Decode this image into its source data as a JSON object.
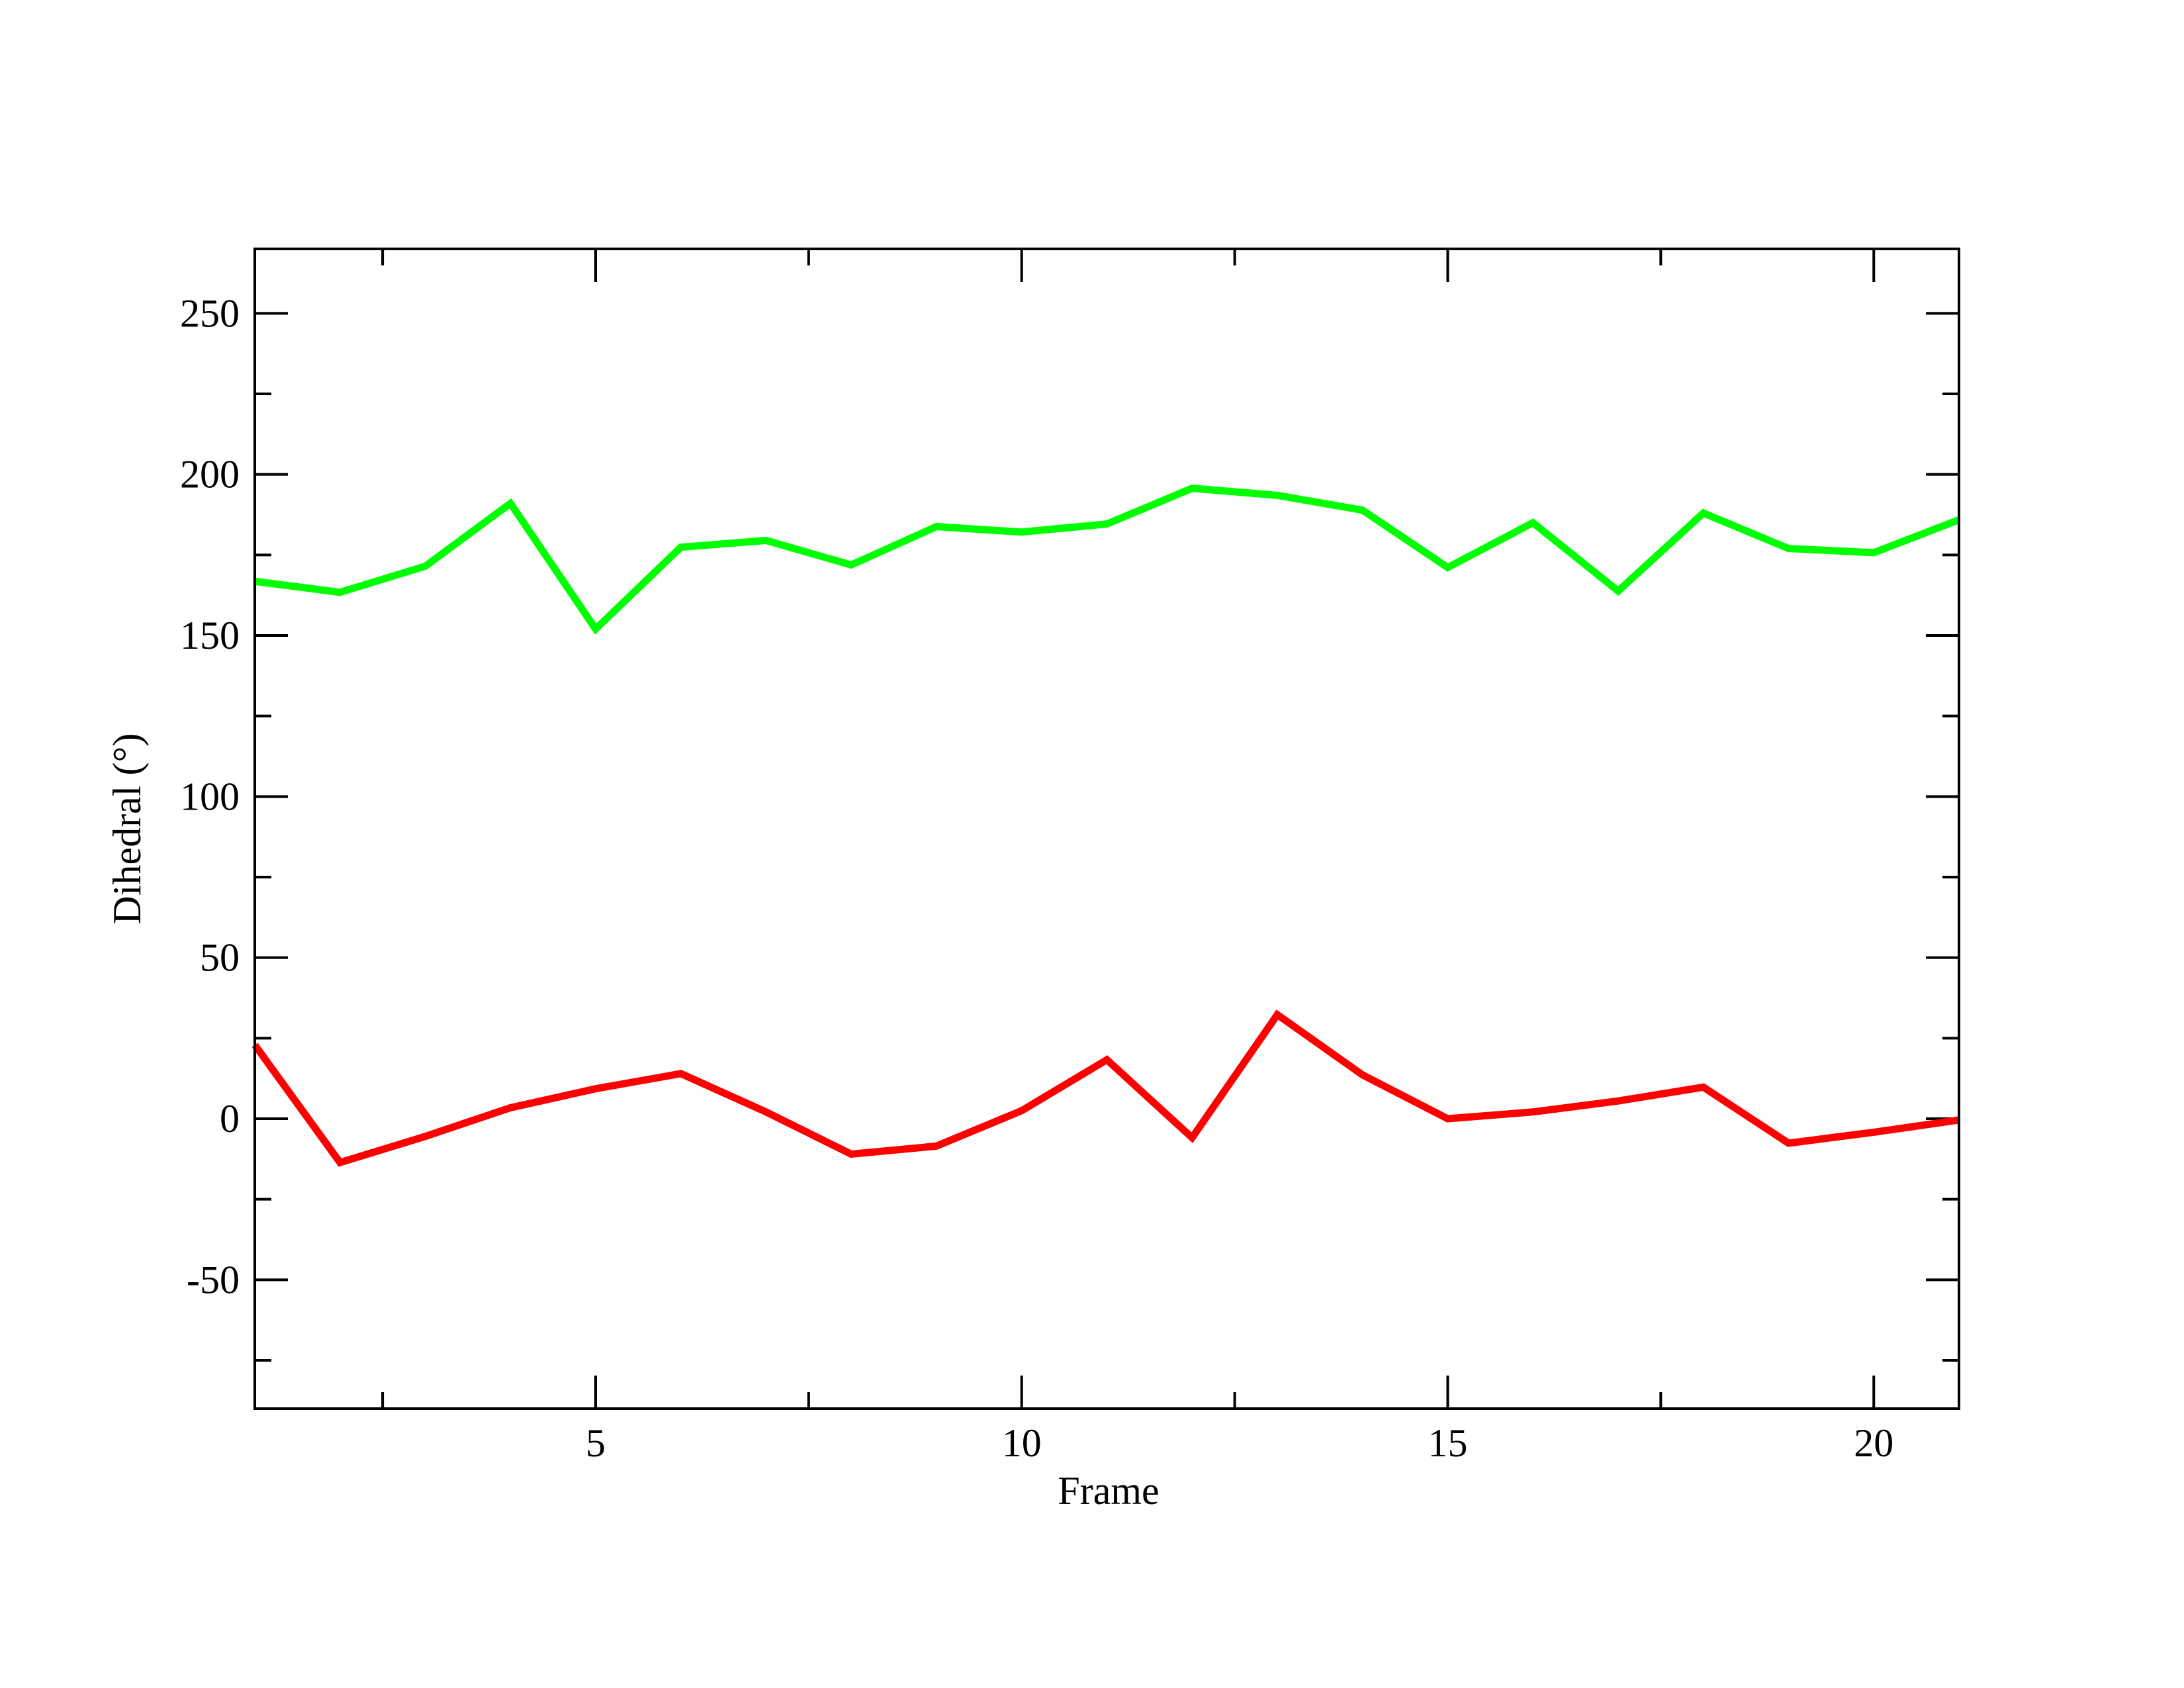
{
  "chart_data": {
    "type": "line",
    "xlabel": "Frame",
    "ylabel": "Dihedral (°)",
    "x": [
      1,
      2,
      3,
      4,
      5,
      6,
      7,
      8,
      9,
      10,
      11,
      12,
      13,
      14,
      15,
      16,
      17,
      18,
      19,
      20,
      21
    ],
    "series": [
      {
        "color": "#00ff00",
        "values": [
          166.8,
          163.4,
          171.5,
          191,
          152,
          177.4,
          179.5,
          171.9,
          183.8,
          182.1,
          184.6,
          195.7,
          193.5,
          188.9,
          171.1,
          185,
          163.8,
          188,
          177,
          175.7,
          185.9
        ]
      },
      {
        "color": "#ff0000",
        "values": [
          22.9,
          -13.6,
          -5.5,
          3.4,
          9.3,
          14,
          2.1,
          -11,
          -8.5,
          2.5,
          18.3,
          -5.9,
          32.3,
          13.6,
          0,
          2.1,
          5.5,
          9.8,
          -7.6,
          -4.2,
          -0.4
        ]
      }
    ],
    "xlim": [
      1,
      21
    ],
    "ylim": [
      -90,
      270
    ],
    "xticks": [
      5,
      10,
      15,
      20
    ],
    "yticks": [
      -50,
      0,
      50,
      100,
      150,
      200,
      250
    ],
    "xminorticks": [
      2.5,
      7.5,
      12.5,
      17.5
    ],
    "yminorticks": [
      -75,
      -25,
      25,
      75,
      125,
      175,
      225
    ],
    "grid": false
  }
}
